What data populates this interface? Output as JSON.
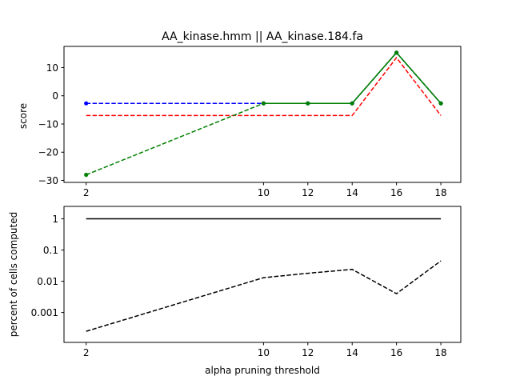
{
  "chart_data": [
    {
      "type": "line",
      "title": "AA_kinase.hmm || AA_kinase.184.fa",
      "xlabel": "",
      "ylabel": "score",
      "xticks": [
        2,
        10,
        12,
        14,
        16,
        18
      ],
      "yticks": [
        10,
        0,
        -10,
        -20,
        -30
      ],
      "xlim": [
        1.0,
        18.9
      ],
      "ylim": [
        -30.7,
        17.5
      ],
      "grid": false,
      "series": [
        {
          "color": "#0000ff",
          "style": "dashed",
          "marker": "dot",
          "x": [
            2,
            10,
            12,
            14,
            16,
            18
          ],
          "y": [
            -2.7,
            -2.7,
            -2.7,
            -2.7,
            15.3,
            -2.7
          ]
        },
        {
          "color": "#ff0000",
          "style": "dashed",
          "marker": "none",
          "x": [
            2,
            10,
            12,
            14,
            16,
            18
          ],
          "y": [
            -7.0,
            -7.0,
            -7.0,
            -7.0,
            13.5,
            -7.0
          ]
        },
        {
          "color": "#008000",
          "style": "dashed",
          "marker": "dot",
          "x": [
            2,
            10,
            12,
            14,
            16,
            18
          ],
          "y": [
            -28.0,
            -2.7,
            -2.7,
            -2.7,
            15.3,
            -2.7
          ]
        },
        {
          "color": "#008000",
          "style": "solid",
          "marker": "none",
          "x": [
            10,
            12,
            14,
            16,
            18
          ],
          "y": [
            -2.7,
            -2.7,
            -2.7,
            15.3,
            -2.7
          ]
        }
      ]
    },
    {
      "type": "line",
      "title": "",
      "xlabel": "alpha pruning threshold",
      "ylabel": "percent of cells computed",
      "xticks": [
        2,
        10,
        12,
        14,
        16,
        18
      ],
      "yticks": [
        1,
        0.1,
        0.01,
        0.001
      ],
      "yticklabels": [
        "1",
        "0.1",
        "0.01",
        "0.001"
      ],
      "yscale": "log",
      "xlim": [
        1.0,
        18.9
      ],
      "ylim": [
        0.00011,
        2.5
      ],
      "grid": false,
      "series": [
        {
          "color": "#000000",
          "style": "solid",
          "marker": "none",
          "x": [
            2,
            10,
            12,
            14,
            16,
            18
          ],
          "y": [
            1,
            1,
            1,
            1,
            1,
            1
          ]
        },
        {
          "color": "#000000",
          "style": "dashed",
          "marker": "none",
          "x": [
            2,
            10,
            12,
            14,
            16,
            18
          ],
          "y": [
            0.00025,
            0.013,
            0.018,
            0.024,
            0.004,
            0.045
          ]
        }
      ]
    }
  ]
}
